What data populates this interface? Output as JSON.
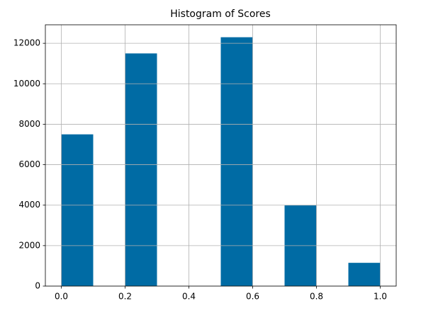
{
  "chart_data": {
    "type": "histogram",
    "title": "Histogram of Scores",
    "bins": [
      0,
      0.1,
      0.2,
      0.3,
      0.4,
      0.5,
      0.6,
      0.7,
      0.8,
      0.9,
      1
    ],
    "counts": [
      7500,
      0,
      11500,
      0,
      0,
      12300,
      0,
      4000,
      0,
      1150
    ],
    "color": "#006ba4",
    "xlim": [
      -0.05,
      1.05
    ],
    "xticks": [
      {
        "value": 0,
        "label": "0.0"
      },
      0.2,
      0.4,
      0.6,
      0.8,
      {
        "value": 1,
        "label": "1.0"
      }
    ],
    "ylim": [
      0,
      12915
    ],
    "yticks": [
      0,
      2000,
      4000,
      6000,
      8000,
      10000,
      12000
    ],
    "grid": true
  }
}
